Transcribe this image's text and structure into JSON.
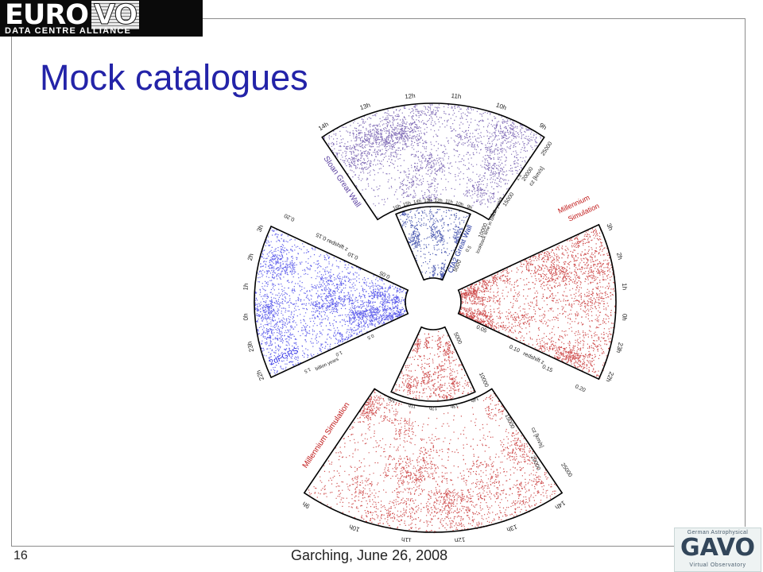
{
  "header": {
    "logo_big_a": "EURO",
    "logo_big_b": "VO",
    "logo_small": "DATA CENTRE ALLIANCE"
  },
  "slide": {
    "title": "Mock catalogues"
  },
  "footer": {
    "page_number": "16",
    "text": "Garching, June 26, 2008"
  },
  "gavo_logo": {
    "top": "German Astrophysical",
    "mid": "GAVO",
    "bottom": "Virtual Observatory"
  },
  "figure": {
    "colors": {
      "sloan": "#5a3fa0",
      "cfa": "#1c2e9c",
      "twodf": "#2e2ee6",
      "millennium": "#c01818"
    },
    "top_outer": {
      "name": "Sloan Great Wall",
      "ra_labels": [
        "14h",
        "13h",
        "12h",
        "11h",
        "10h",
        "9h"
      ],
      "cz_ticks": [
        "15000",
        "20000",
        "25000"
      ],
      "cz_unit": "cz [km/s]"
    },
    "top_inner": {
      "name": "CfA2 Great Wall",
      "ra_labels": [
        "16h",
        "15h",
        "14h",
        "13h",
        "12h",
        "11h",
        "10h",
        "9h"
      ],
      "cz_ticks": [
        "5000",
        "10000"
      ],
      "lookback_label": "lookback time in billion years",
      "lookback_ticks": [
        "0.5",
        "1.0",
        "1.5"
      ]
    },
    "left": {
      "name": "2dFGRS",
      "ra_labels": [
        "22h",
        "23h",
        "0h",
        "1h",
        "2h",
        "3h"
      ],
      "redshift_ticks": [
        "0.05",
        "0.10",
        "0.15",
        "0.20"
      ],
      "redshift_label": "redshift z",
      "billion_label": "billion years",
      "billion_ticks": [
        "0.5",
        "1.0",
        "1.5"
      ]
    },
    "right": {
      "name_line1": "Millennium",
      "name_line2": "Simulation",
      "ra_labels": [
        "3h",
        "2h",
        "1h",
        "0h",
        "23h",
        "22h"
      ],
      "redshift_ticks": [
        "0.05",
        "0.10",
        "0.15",
        "0.20"
      ],
      "redshift_label": "redshift z"
    },
    "bottom_inner": {
      "ra_labels": [
        "10h",
        "11h",
        "12h",
        "13h",
        "14h"
      ],
      "cz_ticks": [
        "5000",
        "10000",
        "15000",
        "20000"
      ],
      "cz_unit": "cz [km/s]"
    },
    "bottom_outer": {
      "name": "Millennium Simulation",
      "ra_labels": [
        "9h",
        "10h",
        "11h",
        "12h",
        "13h",
        "14h"
      ],
      "cz_ticks": [
        "25000"
      ]
    }
  }
}
